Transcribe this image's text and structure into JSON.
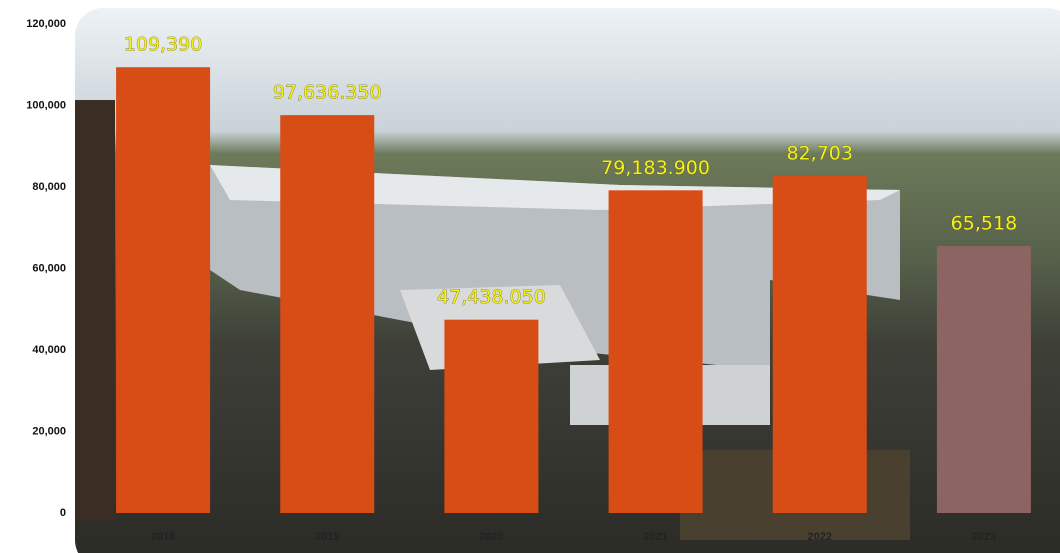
{
  "chart_data": {
    "type": "bar",
    "categories": [
      "2018",
      "2019",
      "2020",
      "2021",
      "2022",
      "2023"
    ],
    "values": [
      109390,
      97636.35,
      47438.05,
      79183.9,
      82703,
      65518
    ],
    "value_labels": [
      "109,390",
      "97,636.350",
      "47,438.050",
      "79,183.900",
      "82,703",
      "65,518"
    ],
    "colors": [
      "#d84c16",
      "#d84c16",
      "#d84c16",
      "#d84c16",
      "#d84c16",
      "#8c6462"
    ],
    "label_color": "#f2f21e",
    "ylim": [
      0,
      120000
    ],
    "yticks": [
      0,
      {
        "value": 20000,
        "label": "20,000"
      },
      {
        "value": 40000,
        "label": "40,000"
      },
      {
        "value": 60000,
        "label": "60,000"
      },
      {
        "value": 80000,
        "label": "80,000"
      },
      {
        "value": 100000,
        "label": "100,000"
      },
      {
        "value": 120000,
        "label": "120,000"
      }
    ]
  }
}
